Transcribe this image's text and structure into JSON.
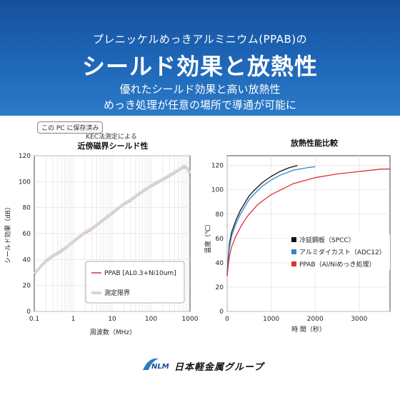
{
  "hero": {
    "subtitle": "プレニッケルめっきアルミニウム(PPAB)の",
    "title": "シールド効果と放熱性",
    "line1": "優れたシールド効果と高い放熱性",
    "line2": "めっき処理が任意の場所で導通が可能に"
  },
  "saved_label": "この PC に保存済み",
  "footer": {
    "logo_text": "日本軽金属グループ",
    "logo_mark_text": "NLM"
  },
  "chart_data": [
    {
      "type": "line",
      "subtitle": "KEC法測定による",
      "title": "近傍磁界シールド性",
      "xlabel": "周波数（MHz）",
      "ylabel": "シールド効果（dB）",
      "xscale": "log",
      "xlim": [
        0.1,
        1000
      ],
      "ylim": [
        0,
        120
      ],
      "xticks": [
        0.1,
        1,
        10,
        100,
        1000
      ],
      "xtick_labels": [
        "0.1",
        "1",
        "10",
        "100",
        "1000"
      ],
      "yticks": [
        0,
        20,
        40,
        60,
        80,
        100,
        120
      ],
      "grid": true,
      "legend_position": "bottom-right",
      "series": [
        {
          "name": "PPAB [AL0.3+Ni10um]",
          "color": "#d9302c",
          "x": [
            0.1,
            0.15,
            0.2,
            0.3,
            0.5,
            0.7,
            1,
            2,
            3,
            5,
            10,
            20,
            30,
            50,
            100,
            200,
            300,
            500,
            700,
            800,
            900,
            1000
          ],
          "y": [
            28,
            34,
            38,
            42,
            46,
            49,
            53,
            60,
            63,
            68,
            75,
            82,
            85,
            90,
            96,
            101,
            104,
            108,
            111,
            110,
            108,
            105
          ]
        },
        {
          "name": "測定限界",
          "color": "#d6d6d6",
          "x": [
            0.1,
            0.15,
            0.2,
            0.3,
            0.5,
            0.7,
            1,
            2,
            3,
            5,
            10,
            20,
            30,
            50,
            100,
            200,
            300,
            500,
            700,
            800,
            900,
            1000
          ],
          "y": [
            29,
            35,
            39,
            43,
            47,
            50,
            54,
            61,
            64,
            69,
            76,
            83,
            86,
            91,
            97,
            102,
            105,
            109,
            112,
            111,
            109,
            106
          ]
        }
      ]
    },
    {
      "type": "line",
      "title": "放熱性能比較",
      "xlabel": "時 間（秒）",
      "ylabel": "温度（℃）",
      "xlim": [
        0,
        3700
      ],
      "ylim": [
        0,
        128
      ],
      "xticks": [
        0,
        1000,
        2000,
        3000
      ],
      "yticks": [
        0,
        20,
        40,
        60,
        80,
        100,
        120
      ],
      "grid": true,
      "legend_position": "right",
      "series": [
        {
          "name": "冷延鋼板（SPCC）",
          "color": "#111111",
          "x": [
            0,
            20,
            50,
            100,
            200,
            300,
            400,
            500,
            600,
            800,
            1000,
            1200,
            1400,
            1600
          ],
          "y": [
            30,
            42,
            55,
            65,
            75,
            83,
            89,
            95,
            99,
            106,
            111,
            115,
            118,
            120
          ]
        },
        {
          "name": "アルミダイカスト（ADC12）",
          "color": "#2f86c8",
          "x": [
            0,
            20,
            50,
            100,
            200,
            300,
            400,
            500,
            600,
            800,
            1000,
            1200,
            1500,
            1800,
            2000
          ],
          "y": [
            30,
            40,
            52,
            62,
            72,
            80,
            86,
            92,
            96,
            103,
            108,
            112,
            116,
            118,
            119
          ]
        },
        {
          "name": "PPAB（Al/Niめっき処理）",
          "color": "#e03030",
          "x": [
            0,
            20,
            50,
            100,
            200,
            300,
            400,
            500,
            700,
            1000,
            1500,
            2000,
            2500,
            3000,
            3500,
            3700
          ],
          "y": [
            29,
            36,
            45,
            53,
            62,
            69,
            75,
            80,
            88,
            96,
            105,
            110,
            113,
            115,
            117,
            117
          ]
        }
      ]
    }
  ]
}
